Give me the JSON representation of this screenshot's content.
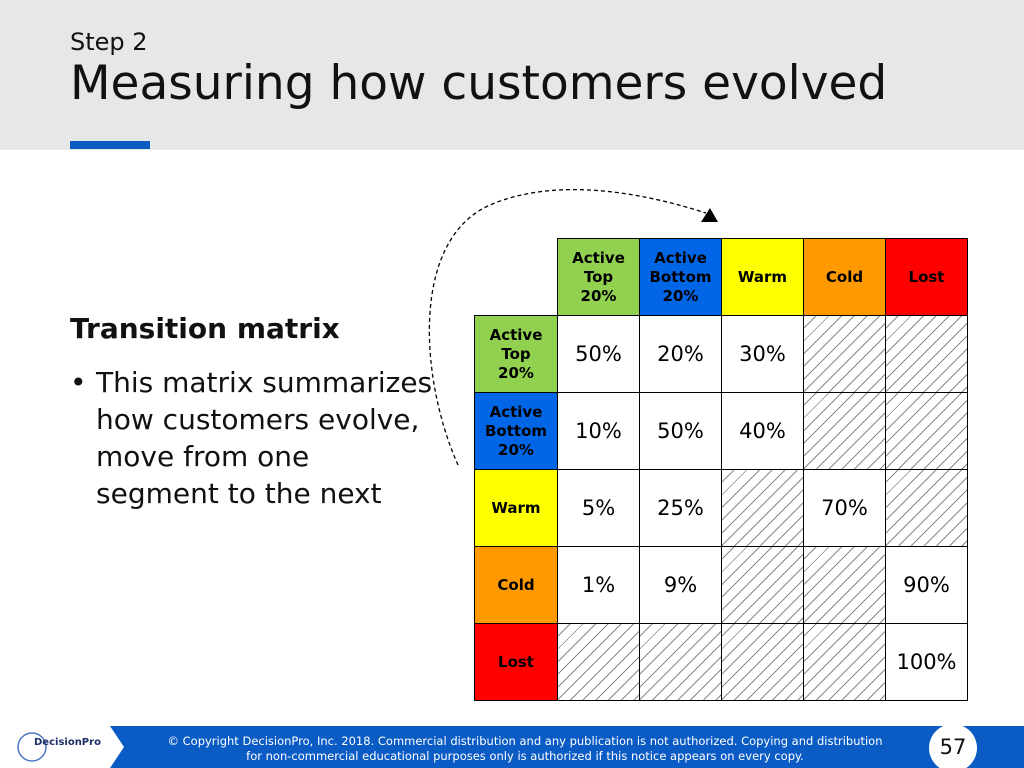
{
  "header": {
    "step": "Step 2",
    "title": "Measuring how customers evolved"
  },
  "body": {
    "heading": "Transition matrix",
    "bullet": "This matrix summarizes how customers evolve, move from one segment to the next"
  },
  "matrix": {
    "columns": [
      {
        "label": "Active Top 20%",
        "color": "#92d050",
        "text_color": "#000000"
      },
      {
        "label": "Active Bottom 20%",
        "color": "#0066e6",
        "text_color": "#000000"
      },
      {
        "label": "Warm",
        "color": "#ffff00",
        "text_color": "#000000"
      },
      {
        "label": "Cold",
        "color": "#ff9900",
        "text_color": "#000000"
      },
      {
        "label": "Lost",
        "color": "#ff0000",
        "text_color": "#000000"
      }
    ],
    "rows": [
      {
        "label": "Active Top 20%",
        "cells": [
          "50%",
          "20%",
          "30%",
          null,
          null
        ]
      },
      {
        "label": "Active Bottom 20%",
        "cells": [
          "10%",
          "50%",
          "40%",
          null,
          null
        ]
      },
      {
        "label": "Warm",
        "cells": [
          "5%",
          "25%",
          null,
          "70%",
          null
        ]
      },
      {
        "label": "Cold",
        "cells": [
          "1%",
          "9%",
          null,
          null,
          "90%"
        ]
      },
      {
        "label": "Lost",
        "cells": [
          null,
          null,
          null,
          null,
          "100%"
        ]
      }
    ]
  },
  "footer": {
    "logo": "DecisionPro",
    "copyright": [
      "© Copyright DecisionPro, Inc.  2018. Commercial distribution and any publication is not authorized. Copying and distribution",
      "for non-commercial educational purposes only is authorized if this notice appears on every copy."
    ],
    "page_number": "57"
  }
}
